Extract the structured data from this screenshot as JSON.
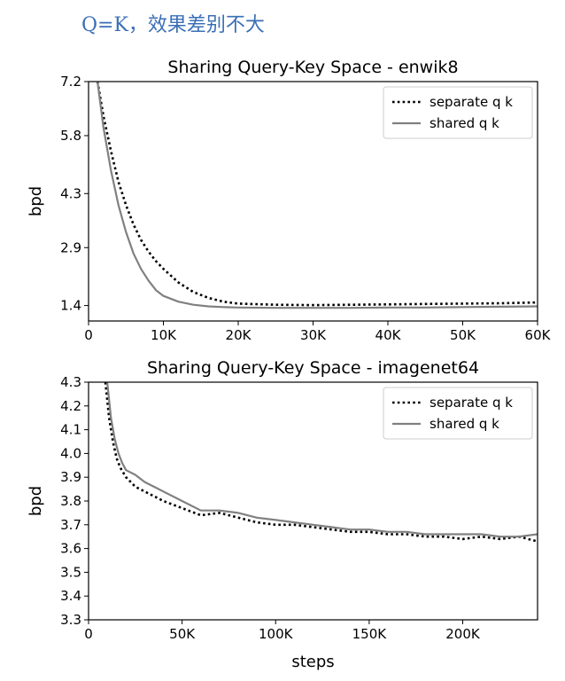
{
  "note": "Q=K，效果差别不大",
  "chart_data": [
    {
      "type": "line",
      "title": "Sharing Query-Key Space - enwik8",
      "xlabel": "",
      "ylabel": "bpd",
      "xlim": [
        0,
        60000
      ],
      "ylim": [
        1.0,
        7.2
      ],
      "xticks": [
        0,
        10000,
        20000,
        30000,
        40000,
        50000,
        60000
      ],
      "xtick_labels": [
        "0",
        "10K",
        "20K",
        "30K",
        "40K",
        "50K",
        "60K"
      ],
      "yticks": [
        1.4,
        2.9,
        4.3,
        5.8,
        7.2
      ],
      "ytick_labels": [
        "1.4",
        "2.9",
        "4.3",
        "5.8",
        "7.2"
      ],
      "legend_position": "top-right",
      "series": [
        {
          "name": "separate q k",
          "style": "dotted",
          "color": "#000000",
          "x": [
            1200,
            2000,
            3000,
            4000,
            5000,
            6000,
            7000,
            8000,
            9000,
            10000,
            12000,
            14000,
            16000,
            18000,
            20000,
            25000,
            30000,
            35000,
            40000,
            45000,
            50000,
            55000,
            60000
          ],
          "y": [
            7.2,
            6.3,
            5.4,
            4.6,
            4.0,
            3.5,
            3.1,
            2.8,
            2.55,
            2.35,
            2.0,
            1.75,
            1.6,
            1.5,
            1.45,
            1.42,
            1.41,
            1.42,
            1.43,
            1.44,
            1.45,
            1.46,
            1.48
          ]
        },
        {
          "name": "shared q k",
          "style": "solid",
          "color": "#808080",
          "x": [
            1200,
            2000,
            3000,
            4000,
            5000,
            6000,
            7000,
            8000,
            9000,
            10000,
            12000,
            14000,
            16000,
            18000,
            20000,
            25000,
            30000,
            35000,
            40000,
            45000,
            50000,
            55000,
            60000
          ],
          "y": [
            7.2,
            6.0,
            4.9,
            4.0,
            3.3,
            2.75,
            2.35,
            2.05,
            1.8,
            1.65,
            1.5,
            1.42,
            1.38,
            1.36,
            1.35,
            1.34,
            1.34,
            1.34,
            1.35,
            1.35,
            1.36,
            1.37,
            1.38
          ]
        }
      ]
    },
    {
      "type": "line",
      "title": "Sharing Query-Key Space - imagenet64",
      "xlabel": "steps",
      "ylabel": "bpd",
      "xlim": [
        0,
        240000
      ],
      "ylim": [
        3.3,
        4.3
      ],
      "xticks": [
        0,
        50000,
        100000,
        150000,
        200000
      ],
      "xtick_labels": [
        "0",
        "50K",
        "100K",
        "150K",
        "200K"
      ],
      "yticks": [
        3.3,
        3.4,
        3.5,
        3.6,
        3.7,
        3.8,
        3.9,
        4.0,
        4.1,
        4.2,
        4.3
      ],
      "ytick_labels": [
        "3.3",
        "3.4",
        "3.5",
        "3.6",
        "3.7",
        "3.8",
        "3.9",
        "4.0",
        "4.1",
        "4.2",
        "4.3"
      ],
      "legend_position": "top-right",
      "series": [
        {
          "name": "separate q k",
          "style": "dotted",
          "color": "#000000",
          "x": [
            9000,
            11000,
            13000,
            15000,
            17000,
            20000,
            25000,
            30000,
            35000,
            40000,
            50000,
            60000,
            70000,
            80000,
            90000,
            100000,
            110000,
            120000,
            130000,
            140000,
            150000,
            160000,
            170000,
            180000,
            190000,
            200000,
            210000,
            220000,
            230000,
            240000
          ],
          "y": [
            4.3,
            4.15,
            4.05,
            3.98,
            3.94,
            3.9,
            3.86,
            3.84,
            3.82,
            3.8,
            3.77,
            3.74,
            3.75,
            3.73,
            3.71,
            3.7,
            3.7,
            3.69,
            3.68,
            3.67,
            3.67,
            3.66,
            3.66,
            3.65,
            3.65,
            3.64,
            3.65,
            3.64,
            3.65,
            3.63
          ]
        },
        {
          "name": "shared q k",
          "style": "solid",
          "color": "#808080",
          "x": [
            10000,
            12000,
            14000,
            16000,
            18000,
            20000,
            25000,
            30000,
            35000,
            40000,
            50000,
            60000,
            70000,
            80000,
            90000,
            100000,
            110000,
            120000,
            130000,
            140000,
            150000,
            160000,
            170000,
            180000,
            190000,
            200000,
            210000,
            220000,
            230000,
            240000
          ],
          "y": [
            4.3,
            4.15,
            4.06,
            4.0,
            3.96,
            3.93,
            3.91,
            3.88,
            3.86,
            3.84,
            3.8,
            3.76,
            3.76,
            3.75,
            3.73,
            3.72,
            3.71,
            3.7,
            3.69,
            3.68,
            3.68,
            3.67,
            3.67,
            3.66,
            3.66,
            3.66,
            3.66,
            3.65,
            3.65,
            3.66
          ]
        }
      ]
    }
  ]
}
